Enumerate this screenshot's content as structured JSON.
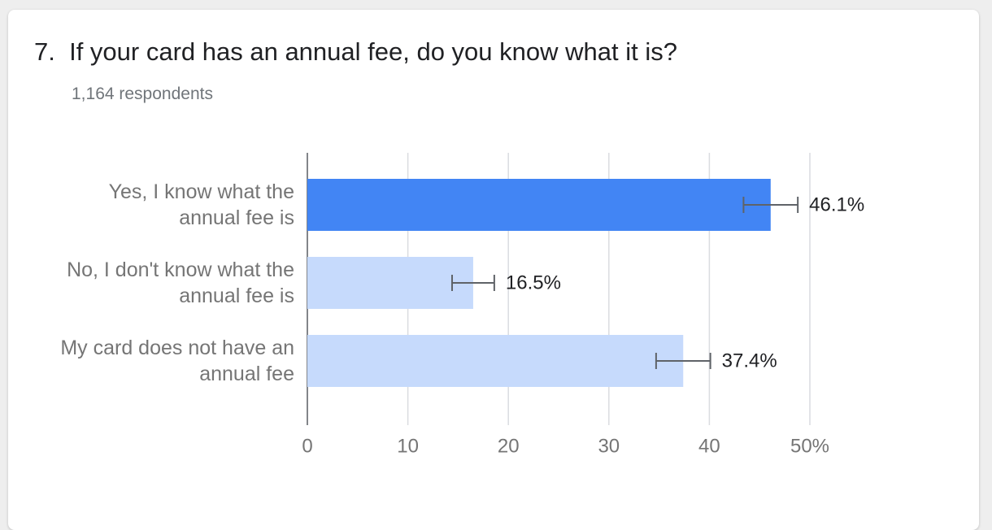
{
  "chart_data": {
    "type": "bar",
    "orientation": "horizontal",
    "title": "7.  If your card has an annual fee, do you know what it is?",
    "subtitle": "1,164 respondents",
    "categories": [
      "Yes, I know what the annual fee is",
      "No, I don't know what the annual fee is",
      "My card does not have an annual fee"
    ],
    "values": [
      46.1,
      16.5,
      37.4
    ],
    "value_labels": [
      "46.1%",
      "16.5%",
      "37.4%"
    ],
    "errors": [
      2.7,
      2.1,
      2.7
    ],
    "colors": [
      "#4285f4",
      "#c6dafc",
      "#c6dafc"
    ],
    "xlim": [
      0,
      50
    ],
    "xticks": [
      0,
      10,
      20,
      30,
      40,
      {
        "value": 50,
        "label": "50%"
      }
    ],
    "grid": true
  }
}
